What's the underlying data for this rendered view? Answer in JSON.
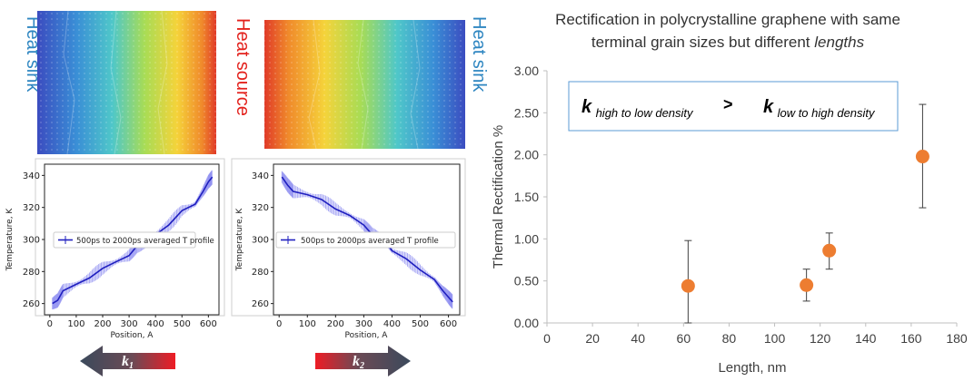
{
  "colors": {
    "sink_label": "#2e86c1",
    "source_label": "#e3211c",
    "profile_line": "#1f1fbf",
    "profile_band": "#8c8cf0",
    "marker": "#ed7d31",
    "arrow_body": "#3b4a5c",
    "arrow_red": "#ee1c25",
    "eqbox_border": "#5b9bd5"
  },
  "labels": {
    "left_sink": "Heat sink",
    "heat_source": "Heat source",
    "right_sink": "Heat sink"
  },
  "icons": {
    "left_arrow": "arrow-left-icon",
    "right_arrow": "arrow-right-icon"
  },
  "arrows": {
    "left": {
      "k": "k",
      "sub": "1"
    },
    "right": {
      "k": "k",
      "sub": "2"
    }
  },
  "equation": {
    "k1": "k",
    "sub1": "high to low density",
    "op": ">",
    "k2": "k",
    "sub2": "low to high density"
  },
  "chart_data": [
    {
      "type": "line",
      "xlabel": "Position, A",
      "ylabel": "Temperature, K",
      "xlim": [
        -20,
        640
      ],
      "ylim": [
        253,
        347
      ],
      "xticks": [
        0,
        100,
        200,
        300,
        400,
        500,
        600
      ],
      "yticks": [
        260,
        280,
        300,
        320,
        340
      ],
      "legend": "500ps to 2000ps averaged T profile",
      "legend_position": "center-left",
      "series": [
        {
          "x": [
            10,
            30,
            50,
            100,
            150,
            200,
            250,
            300,
            330,
            370,
            400,
            450,
            500,
            550,
            580,
            600,
            615
          ],
          "y": [
            260,
            262,
            268,
            272,
            276,
            282,
            286,
            290,
            296,
            298,
            303,
            309,
            318,
            322,
            330,
            336,
            339
          ]
        }
      ]
    },
    {
      "type": "line",
      "xlabel": "Position, A",
      "ylabel": "Temperature, K",
      "xlim": [
        -20,
        640
      ],
      "ylim": [
        253,
        347
      ],
      "xticks": [
        0,
        100,
        200,
        300,
        400,
        500,
        600
      ],
      "yticks": [
        260,
        280,
        300,
        320,
        340
      ],
      "legend": "500ps to 2000ps averaged T profile",
      "legend_position": "center-left",
      "series": [
        {
          "x": [
            10,
            30,
            50,
            100,
            150,
            200,
            250,
            300,
            330,
            370,
            400,
            450,
            500,
            550,
            580,
            600,
            615
          ],
          "y": [
            339,
            334,
            330,
            328,
            325,
            319,
            315,
            309,
            303,
            300,
            293,
            288,
            281,
            275,
            268,
            264,
            261
          ]
        }
      ]
    },
    {
      "type": "scatter",
      "title_line1": "Rectification in polycrystalline graphene with same",
      "title_line2": "terminal grain sizes but different",
      "title_emph": "lengths",
      "xlabel": "Length, nm",
      "ylabel": "Thermal Rectification %",
      "xlim": [
        0,
        180
      ],
      "ylim": [
        0,
        3
      ],
      "xticks": [
        "0",
        "20",
        "40",
        "60",
        "80",
        "100",
        "120",
        "140",
        "160",
        "180"
      ],
      "yticks": [
        "0.00",
        "0.50",
        "1.00",
        "1.50",
        "2.00",
        "2.50",
        "3.00"
      ],
      "points": [
        {
          "x": 62,
          "y": 0.44,
          "err_low": 0.0,
          "err_high": 0.98
        },
        {
          "x": 114,
          "y": 0.45,
          "err_low": 0.26,
          "err_high": 0.64
        },
        {
          "x": 124,
          "y": 0.86,
          "err_low": 0.64,
          "err_high": 1.07
        },
        {
          "x": 165,
          "y": 1.98,
          "err_low": 1.37,
          "err_high": 2.6
        }
      ]
    }
  ]
}
